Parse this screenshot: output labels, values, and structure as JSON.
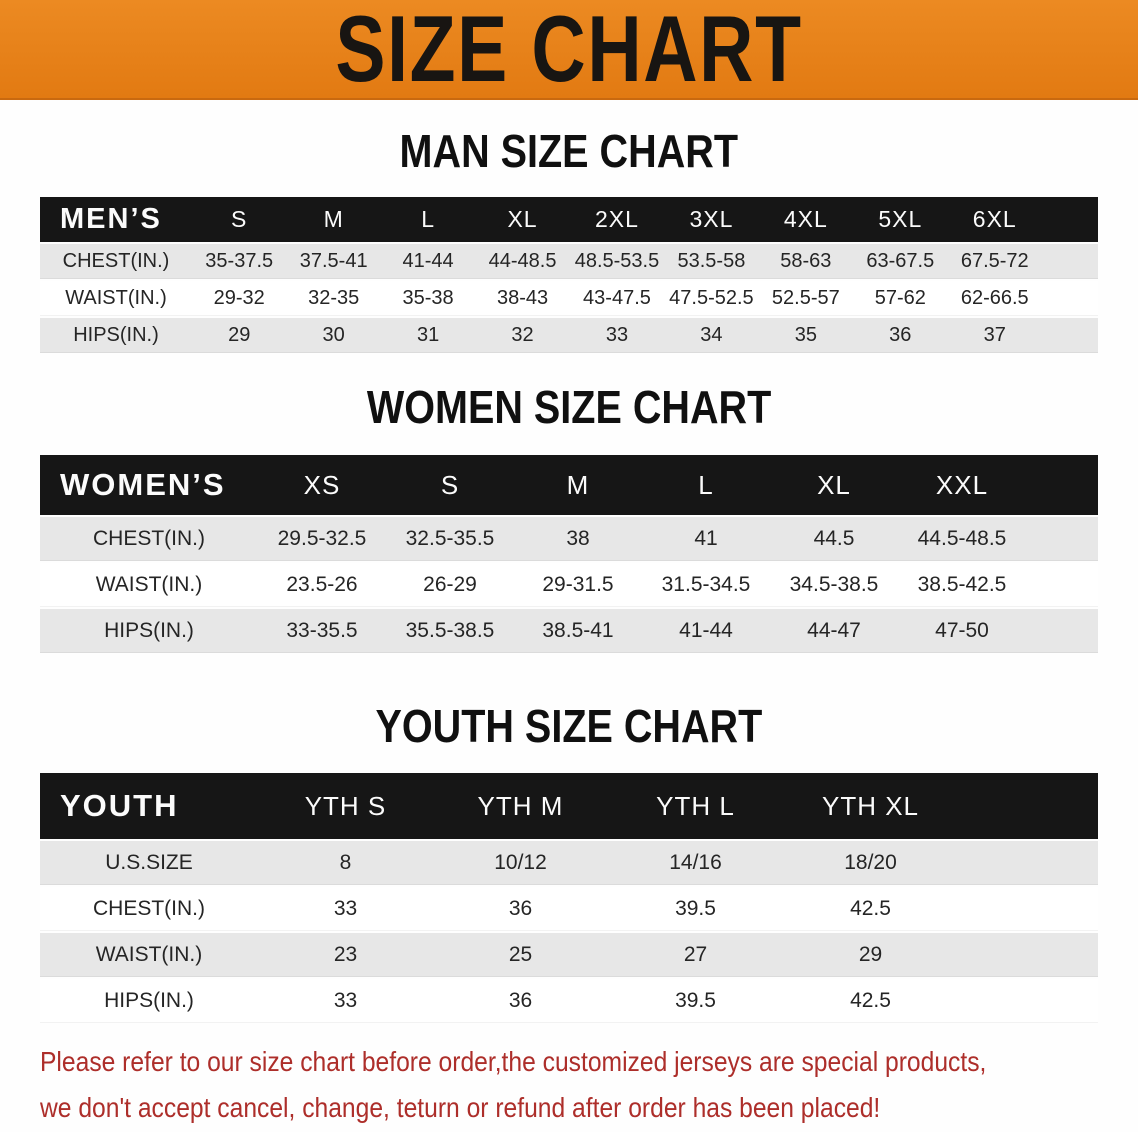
{
  "banner": {
    "title": "SIZE CHART"
  },
  "colors": {
    "banner_orange": "#E8801B",
    "table_header_black": "#161616",
    "row_alt_gray": "#E7E7E7",
    "note_red": "#AD2E2A"
  },
  "men": {
    "heading": "MAN SIZE CHART",
    "label": "MEN’S",
    "columns": [
      "S",
      "M",
      "L",
      "XL",
      "2XL",
      "3XL",
      "4XL",
      "5XL",
      "6XL"
    ],
    "rows": [
      {
        "label": "CHEST(IN.)",
        "values": [
          "35-37.5",
          "37.5-41",
          "41-44",
          "44-48.5",
          "48.5-53.5",
          "53.5-58",
          "58-63",
          "63-67.5",
          "67.5-72"
        ]
      },
      {
        "label": "WAIST(IN.)",
        "values": [
          "29-32",
          "32-35",
          "35-38",
          "38-43",
          "43-47.5",
          "47.5-52.5",
          "52.5-57",
          "57-62",
          "62-66.5"
        ]
      },
      {
        "label": "HIPS(IN.)",
        "values": [
          "29",
          "30",
          "31",
          "32",
          "33",
          "34",
          "35",
          "36",
          "37"
        ]
      }
    ]
  },
  "women": {
    "heading": "WOMEN SIZE CHART",
    "label": "WOMEN’S",
    "columns": [
      "XS",
      "S",
      "M",
      "L",
      "XL",
      "XXL"
    ],
    "rows": [
      {
        "label": "CHEST(IN.)",
        "values": [
          "29.5-32.5",
          "32.5-35.5",
          "38",
          "41",
          "44.5",
          "44.5-48.5"
        ]
      },
      {
        "label": "WAIST(IN.)",
        "values": [
          "23.5-26",
          "26-29",
          "29-31.5",
          "31.5-34.5",
          "34.5-38.5",
          "38.5-42.5"
        ]
      },
      {
        "label": "HIPS(IN.)",
        "values": [
          "33-35.5",
          "35.5-38.5",
          "38.5-41",
          "41-44",
          "44-47",
          "47-50"
        ]
      }
    ]
  },
  "youth": {
    "heading": "YOUTH SIZE CHART",
    "label": "YOUTH",
    "columns": [
      "YTH S",
      "YTH M",
      "YTH L",
      "YTH XL"
    ],
    "rows": [
      {
        "label": "U.S.SIZE",
        "values": [
          "8",
          "10/12",
          "14/16",
          "18/20"
        ]
      },
      {
        "label": "CHEST(IN.)",
        "values": [
          "33",
          "36",
          "39.5",
          "42.5"
        ]
      },
      {
        "label": "WAIST(IN.)",
        "values": [
          "23",
          "25",
          "27",
          "29"
        ]
      },
      {
        "label": "HIPS(IN.)",
        "values": [
          "33",
          "36",
          "39.5",
          "42.5"
        ]
      }
    ]
  },
  "note": {
    "line1": "Please refer to our size chart before order,the customized jerseys are special products,",
    "line2": "we don't accept cancel, change, teturn or refund after order has been placed!"
  }
}
